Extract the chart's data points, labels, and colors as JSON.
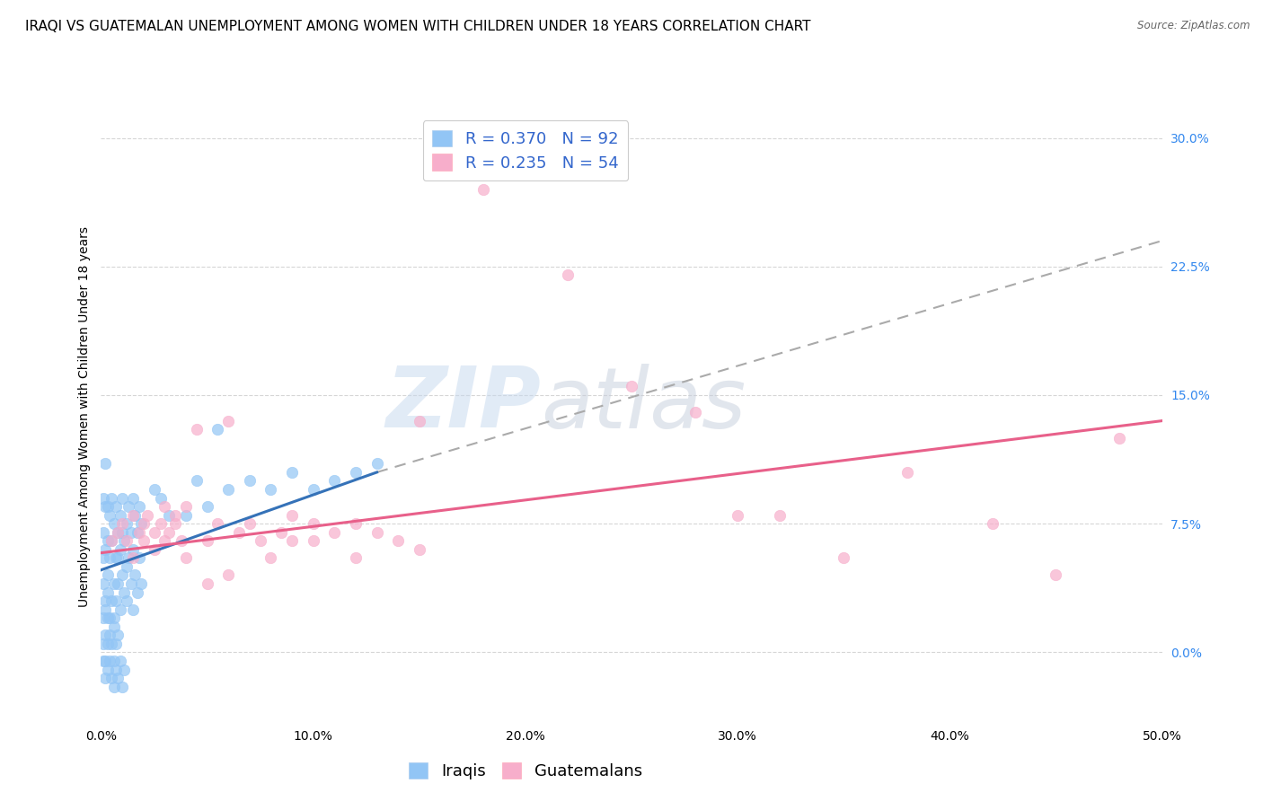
{
  "title": "IRAQI VS GUATEMALAN UNEMPLOYMENT AMONG WOMEN WITH CHILDREN UNDER 18 YEARS CORRELATION CHART",
  "source": "Source: ZipAtlas.com",
  "ylabel": "Unemployment Among Women with Children Under 18 years",
  "xlim": [
    0.0,
    0.5
  ],
  "ylim": [
    -0.04,
    0.315
  ],
  "iraqi_R": 0.37,
  "iraqi_N": 92,
  "guatemalan_R": 0.235,
  "guatemalan_N": 54,
  "iraqi_color": "#92C5F5",
  "guatemalan_color": "#F7AECB",
  "trend_iraqi_color": "#3572B8",
  "trend_guatemalan_color": "#E8608A",
  "trend_dashed_color": "#AAAAAA",
  "watermark_zip_color": "#C5D8EE",
  "watermark_atlas_color": "#C5CEDC",
  "background_color": "#FFFFFF",
  "grid_color": "#CCCCCC",
  "title_fontsize": 11,
  "axis_label_fontsize": 10,
  "tick_fontsize": 10,
  "legend_fontsize": 13,
  "iraqi_points": [
    [
      0.001,
      0.055
    ],
    [
      0.001,
      0.04
    ],
    [
      0.001,
      0.07
    ],
    [
      0.002,
      0.025
    ],
    [
      0.002,
      0.06
    ],
    [
      0.002,
      0.085
    ],
    [
      0.003,
      0.035
    ],
    [
      0.003,
      0.065
    ],
    [
      0.003,
      0.045
    ],
    [
      0.004,
      0.08
    ],
    [
      0.004,
      0.02
    ],
    [
      0.004,
      0.055
    ],
    [
      0.005,
      0.09
    ],
    [
      0.005,
      0.03
    ],
    [
      0.005,
      0.065
    ],
    [
      0.006,
      0.075
    ],
    [
      0.006,
      0.04
    ],
    [
      0.006,
      0.02
    ],
    [
      0.007,
      0.085
    ],
    [
      0.007,
      0.055
    ],
    [
      0.007,
      0.03
    ],
    [
      0.008,
      0.07
    ],
    [
      0.008,
      0.04
    ],
    [
      0.008,
      0.055
    ],
    [
      0.009,
      0.08
    ],
    [
      0.009,
      0.025
    ],
    [
      0.009,
      0.06
    ],
    [
      0.01,
      0.09
    ],
    [
      0.01,
      0.045
    ],
    [
      0.01,
      0.07
    ],
    [
      0.011,
      0.035
    ],
    [
      0.011,
      0.065
    ],
    [
      0.012,
      0.075
    ],
    [
      0.012,
      0.05
    ],
    [
      0.012,
      0.03
    ],
    [
      0.013,
      0.085
    ],
    [
      0.013,
      0.055
    ],
    [
      0.014,
      0.04
    ],
    [
      0.014,
      0.07
    ],
    [
      0.015,
      0.09
    ],
    [
      0.015,
      0.025
    ],
    [
      0.015,
      0.06
    ],
    [
      0.016,
      0.08
    ],
    [
      0.016,
      0.045
    ],
    [
      0.017,
      0.07
    ],
    [
      0.017,
      0.035
    ],
    [
      0.018,
      0.085
    ],
    [
      0.018,
      0.055
    ],
    [
      0.019,
      0.04
    ],
    [
      0.019,
      0.075
    ],
    [
      0.002,
      -0.005
    ],
    [
      0.003,
      -0.01
    ],
    [
      0.004,
      -0.005
    ],
    [
      0.005,
      -0.015
    ],
    [
      0.006,
      -0.005
    ],
    [
      0.006,
      -0.02
    ],
    [
      0.007,
      -0.01
    ],
    [
      0.008,
      -0.015
    ],
    [
      0.009,
      -0.005
    ],
    [
      0.01,
      -0.02
    ],
    [
      0.011,
      -0.01
    ],
    [
      0.003,
      0.005
    ],
    [
      0.004,
      0.01
    ],
    [
      0.005,
      0.005
    ],
    [
      0.006,
      0.015
    ],
    [
      0.007,
      0.005
    ],
    [
      0.008,
      0.01
    ],
    [
      0.001,
      0.005
    ],
    [
      0.002,
      0.01
    ],
    [
      0.001,
      -0.005
    ],
    [
      0.002,
      -0.015
    ],
    [
      0.001,
      0.02
    ],
    [
      0.002,
      0.03
    ],
    [
      0.003,
      0.02
    ],
    [
      0.001,
      0.09
    ],
    [
      0.002,
      0.11
    ],
    [
      0.003,
      0.085
    ],
    [
      0.04,
      0.08
    ],
    [
      0.045,
      0.1
    ],
    [
      0.05,
      0.085
    ],
    [
      0.06,
      0.095
    ],
    [
      0.07,
      0.1
    ],
    [
      0.08,
      0.095
    ],
    [
      0.09,
      0.105
    ],
    [
      0.1,
      0.095
    ],
    [
      0.11,
      0.1
    ],
    [
      0.12,
      0.105
    ],
    [
      0.13,
      0.11
    ],
    [
      0.055,
      0.13
    ],
    [
      0.028,
      0.09
    ],
    [
      0.032,
      0.08
    ],
    [
      0.025,
      0.095
    ]
  ],
  "guatemalan_points": [
    [
      0.005,
      0.065
    ],
    [
      0.008,
      0.07
    ],
    [
      0.01,
      0.075
    ],
    [
      0.012,
      0.065
    ],
    [
      0.015,
      0.08
    ],
    [
      0.015,
      0.055
    ],
    [
      0.018,
      0.07
    ],
    [
      0.02,
      0.075
    ],
    [
      0.02,
      0.065
    ],
    [
      0.022,
      0.08
    ],
    [
      0.025,
      0.07
    ],
    [
      0.025,
      0.06
    ],
    [
      0.028,
      0.075
    ],
    [
      0.03,
      0.085
    ],
    [
      0.03,
      0.065
    ],
    [
      0.032,
      0.07
    ],
    [
      0.035,
      0.075
    ],
    [
      0.035,
      0.08
    ],
    [
      0.038,
      0.065
    ],
    [
      0.04,
      0.085
    ],
    [
      0.04,
      0.055
    ],
    [
      0.045,
      0.13
    ],
    [
      0.05,
      0.065
    ],
    [
      0.055,
      0.075
    ],
    [
      0.06,
      0.135
    ],
    [
      0.065,
      0.07
    ],
    [
      0.07,
      0.075
    ],
    [
      0.075,
      0.065
    ],
    [
      0.08,
      0.055
    ],
    [
      0.085,
      0.07
    ],
    [
      0.09,
      0.065
    ],
    [
      0.09,
      0.08
    ],
    [
      0.1,
      0.075
    ],
    [
      0.1,
      0.065
    ],
    [
      0.11,
      0.07
    ],
    [
      0.12,
      0.055
    ],
    [
      0.12,
      0.075
    ],
    [
      0.13,
      0.07
    ],
    [
      0.14,
      0.065
    ],
    [
      0.15,
      0.135
    ],
    [
      0.15,
      0.06
    ],
    [
      0.18,
      0.27
    ],
    [
      0.22,
      0.22
    ],
    [
      0.25,
      0.155
    ],
    [
      0.28,
      0.14
    ],
    [
      0.3,
      0.08
    ],
    [
      0.32,
      0.08
    ],
    [
      0.35,
      0.055
    ],
    [
      0.38,
      0.105
    ],
    [
      0.42,
      0.075
    ],
    [
      0.45,
      0.045
    ],
    [
      0.48,
      0.125
    ],
    [
      0.05,
      0.04
    ],
    [
      0.06,
      0.045
    ]
  ],
  "trend_iraqi_x_start": 0.0,
  "trend_iraqi_x_solid_end": 0.13,
  "trend_iraqi_x_dash_end": 0.5,
  "trend_iraqi_y_start": 0.048,
  "trend_iraqi_y_solid_end": 0.105,
  "trend_iraqi_y_dash_end": 0.24,
  "trend_guatemalan_x_start": 0.0,
  "trend_guatemalan_x_end": 0.5,
  "trend_guatemalan_y_start": 0.058,
  "trend_guatemalan_y_end": 0.135
}
